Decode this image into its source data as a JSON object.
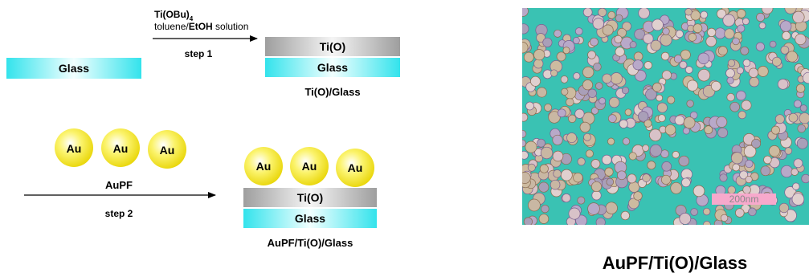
{
  "scheme": {
    "substrate_label": "Glass",
    "layer_tio_label": "Ti(O)",
    "reagent_main": "Ti(OBu)",
    "reagent_subscript": "4",
    "solvent_prefix": "toluene/",
    "solvent_bold": "EtOH",
    "solvent_suffix": " solution",
    "step1_label": "step 1",
    "product1_label": "Ti(O)/Glass",
    "au_label": "Au",
    "reagent2_label": "AuPF",
    "step2_label": "step 2",
    "product2_label": "AuPF/Ti(O)/Glass"
  },
  "micrograph": {
    "scale_bar_label": "200nm",
    "caption": "AuPF/Ti(O)/Glass"
  },
  "colors": {
    "glass": "#33e0e8",
    "tio_layer": "#9a9a9a",
    "gold_particle": "#f7ea1f",
    "micrograph_background": "#3ac2b3",
    "scale_bar": "#f7a9cc"
  }
}
